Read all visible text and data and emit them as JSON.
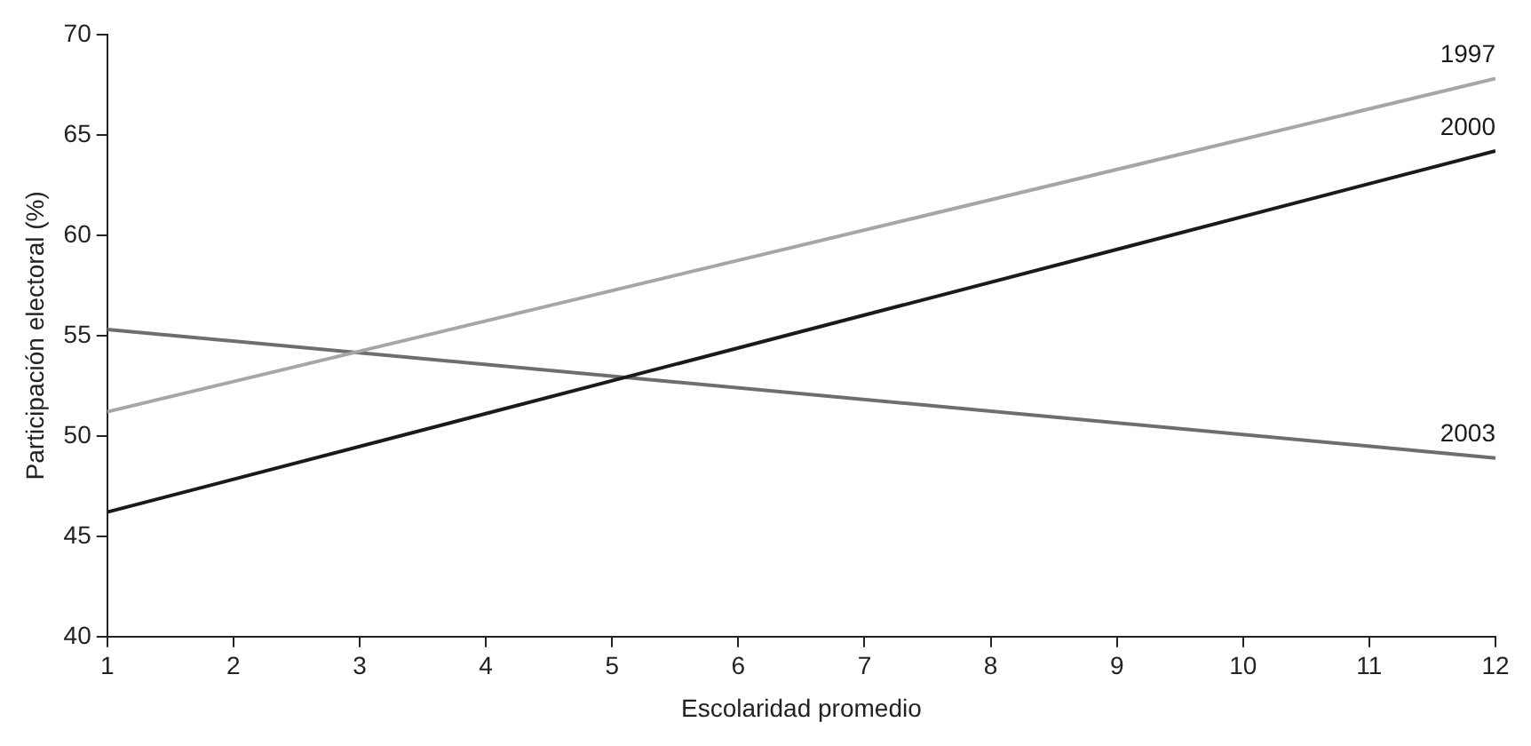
{
  "chart_data": {
    "type": "line",
    "xlabel": "Escolaridad promedio",
    "ylabel": "Participación electoral (%)",
    "x": [
      1,
      12
    ],
    "series": [
      {
        "name": "1997",
        "color": "#a6a6a6",
        "values": [
          51.2,
          67.8
        ]
      },
      {
        "name": "2000",
        "color": "#1a1a1a",
        "values": [
          46.2,
          64.2
        ]
      },
      {
        "name": "2003",
        "color": "#6e6e6e",
        "values": [
          55.3,
          48.9
        ]
      }
    ],
    "xlim": [
      1,
      12
    ],
    "xticks": [
      1,
      2,
      3,
      4,
      5,
      6,
      7,
      8,
      9,
      10,
      11,
      12
    ],
    "ylim": [
      40,
      70
    ],
    "yticks": [
      40,
      45,
      50,
      55,
      60,
      65,
      70
    ],
    "grid": false,
    "legend": false,
    "marker": "none",
    "line_style": "solid"
  }
}
